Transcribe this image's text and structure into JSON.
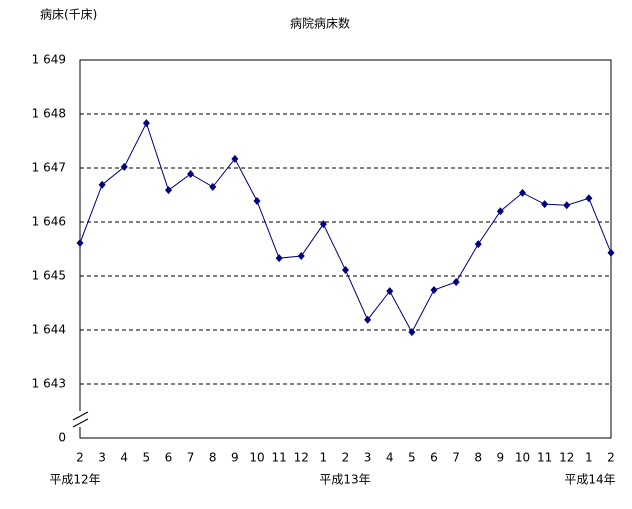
{
  "chart_data": {
    "type": "line",
    "title": "病院病床数",
    "y_axis_label": "病床(千床)",
    "categories": [
      "2",
      "3",
      "4",
      "5",
      "6",
      "7",
      "8",
      "9",
      "10",
      "11",
      "12",
      "1",
      "2",
      "3",
      "4",
      "5",
      "6",
      "7",
      "8",
      "9",
      "10",
      "11",
      "12",
      "1",
      "2"
    ],
    "era_labels": [
      "平成12年",
      "平成13年",
      "平成14年"
    ],
    "series": [
      {
        "name": "病院病床数",
        "color": "#000080",
        "values": [
          1645.61,
          1646.69,
          1647.02,
          1647.83,
          1646.59,
          1646.89,
          1646.65,
          1647.17,
          1646.39,
          1645.33,
          1645.37,
          1645.96,
          1645.11,
          1644.19,
          1644.72,
          1643.96,
          1644.74,
          1644.89,
          1645.59,
          1646.2,
          1646.54,
          1646.33,
          1646.31,
          1646.44,
          1645.43
        ]
      }
    ],
    "ylim": [
      1642,
      1649
    ],
    "yticks": [
      {
        "value": 1643,
        "label": "1 643"
      },
      {
        "value": 1644,
        "label": "1 644"
      },
      {
        "value": 1645,
        "label": "1 645"
      },
      {
        "value": 1646,
        "label": "1 646"
      },
      {
        "value": 1647,
        "label": "1 647"
      },
      {
        "value": 1648,
        "label": "1 648"
      },
      {
        "value": 1649,
        "label": "1 649"
      }
    ],
    "axis_break_label": "0",
    "grid": true
  }
}
